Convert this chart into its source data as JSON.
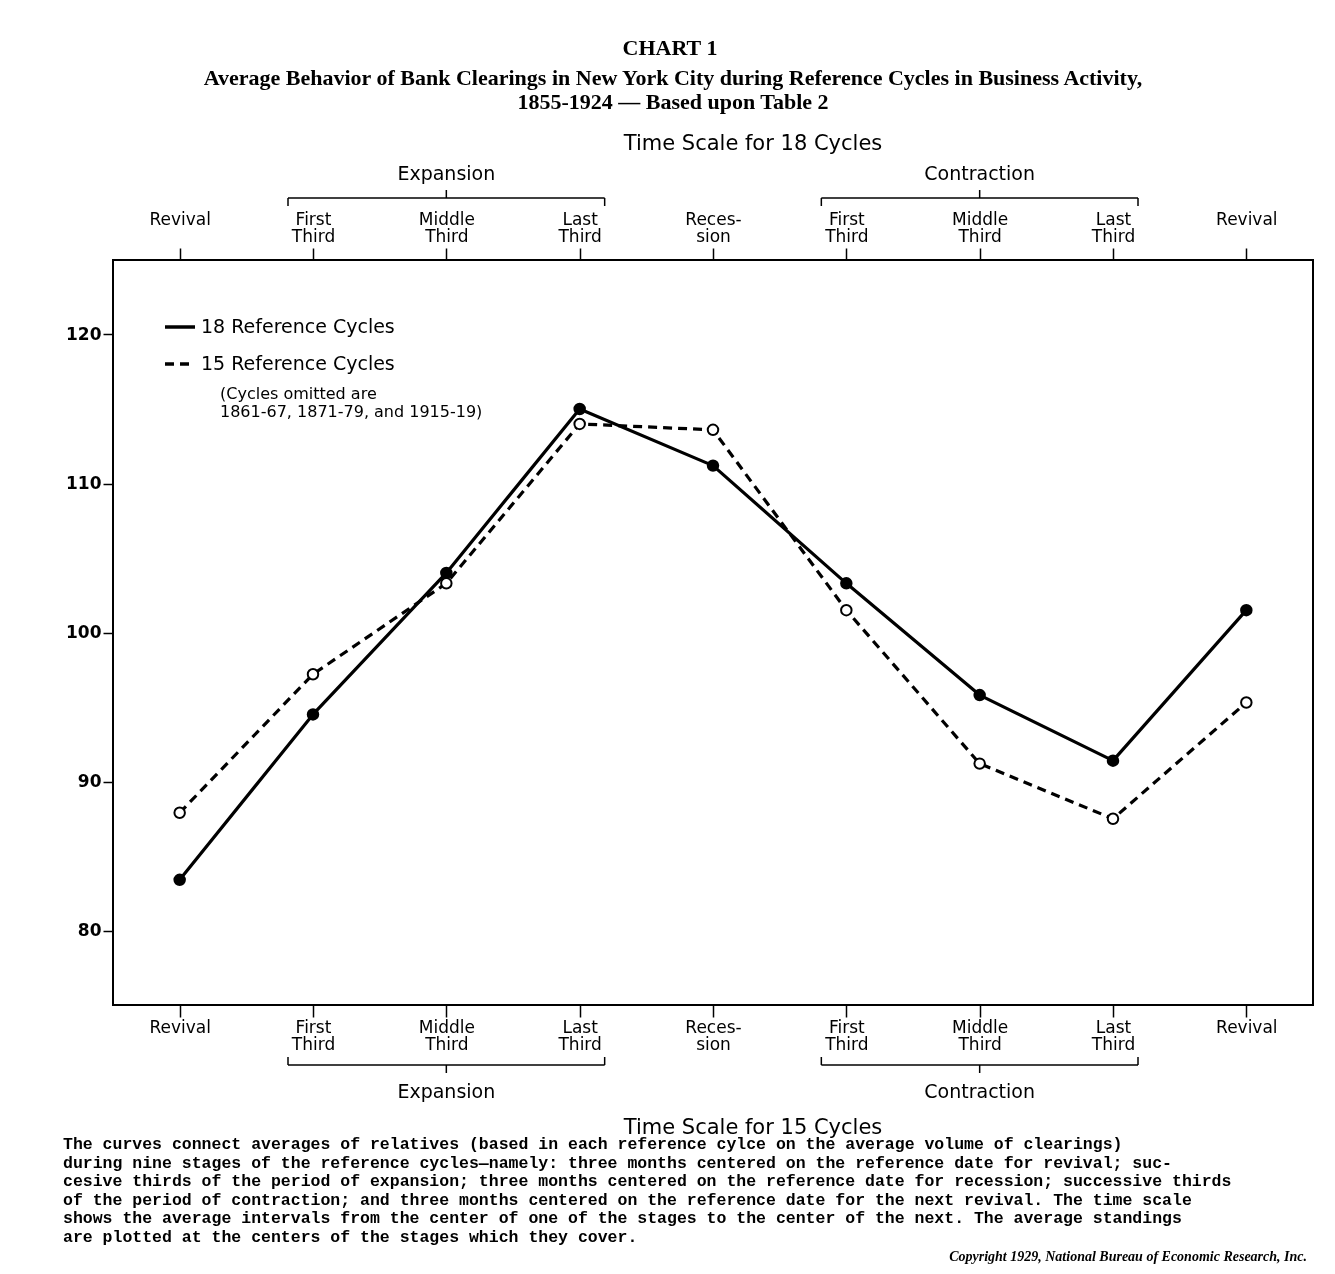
{
  "chart_data": {
    "type": "line",
    "title": "CHART 1",
    "subtitle": "Average Behavior of Bank Clearings in New York City during Reference Cycles in Business Activity,\n1855-1924 — Based upon Table 2",
    "xlabel": "Time Scale for 15 Cycles",
    "x2label": "Time Scale for 18 Cycles",
    "categories": [
      "Revival",
      "First\nThird",
      "Middle\nThird",
      "Last\nThird",
      "Reces-\nsion",
      "First\nThird",
      "Middle\nThird",
      "Last\nThird",
      "Revival"
    ],
    "ylim": [
      75,
      125
    ],
    "yticks": [
      80,
      90,
      100,
      110,
      120
    ],
    "series": [
      {
        "name": "18 Reference Cycles",
        "color": "#000000",
        "line_style": "solid",
        "values": [
          83.4,
          94.5,
          104.0,
          115.0,
          111.2,
          103.3,
          95.8,
          91.4,
          101.5
        ]
      },
      {
        "name": "15 Reference Cycles",
        "color": "#000000",
        "line_style": "dashed",
        "values": [
          87.9,
          97.2,
          103.3,
          114.0,
          113.6,
          101.5,
          91.2,
          87.5,
          95.3
        ]
      }
    ],
    "marker": "circle",
    "legend": "top left",
    "grid": false,
    "annotations": [
      "Expansion",
      "Contraction",
      "Expansion",
      "Contraction",
      "(Cycles omitted are\n1861-67, 1871-79, and 1915-19)",
      "      The curves connect averages of relatives (based in each reference cylce on the average volume of clearings)\nduring nine stages of the reference cycles—namely:  three months centered on the reference date for revival; suc-\ncesive thirds of the period of expansion; three months centered on the reference date for recession; successive thirds\nof the period of contraction; and three months centered on the reference date for the next revival.  The time scale\nshows the average intervals from the center of one of the stages to the center of the next.  The average standings\nare plotted at the centers of the stages which they cover.",
      "Copyright 1929, National Bureau of Economic Research, Inc."
    ]
  }
}
